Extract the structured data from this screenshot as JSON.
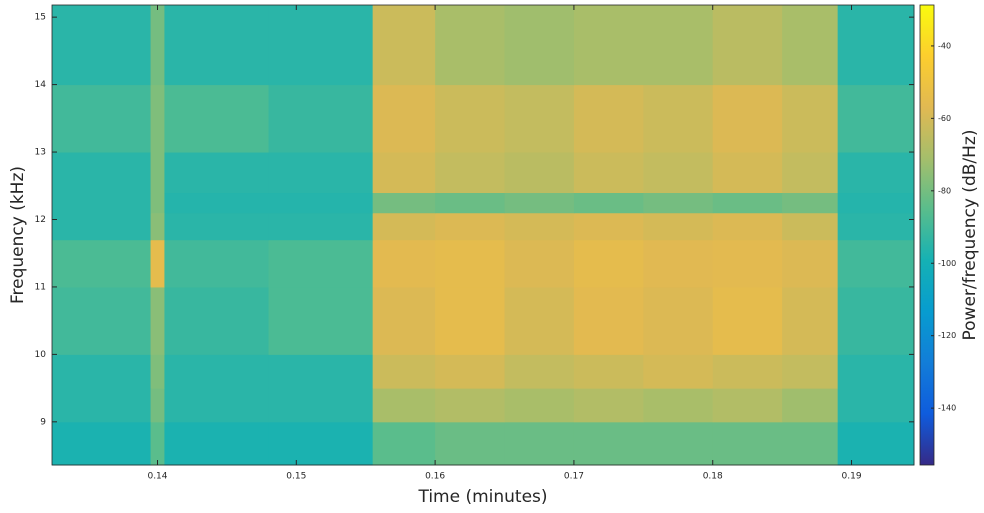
{
  "chart_data": {
    "type": "heatmap",
    "xlabel": "Time (minutes)",
    "ylabel": "Frequency (kHz)",
    "colorbar_label": "Power/frequency (dB/Hz)",
    "x_edges": [
      0.1324,
      0.1395,
      0.1405,
      0.148,
      0.1555,
      0.16,
      0.165,
      0.17,
      0.175,
      0.18,
      0.185,
      0.189,
      0.1945
    ],
    "y_edges": [
      8.36,
      9,
      9.5,
      10,
      11,
      11.7,
      12.1,
      12.4,
      13,
      14,
      15.18
    ],
    "values": [
      [
        -98,
        -85,
        -98,
        -98,
        -85,
        -82,
        -82,
        -82,
        -82,
        -82,
        -82,
        -98
      ],
      [
        -95,
        -80,
        -95,
        -95,
        -70,
        -68,
        -70,
        -68,
        -70,
        -68,
        -72,
        -95
      ],
      [
        -95,
        -78,
        -95,
        -95,
        -62,
        -60,
        -64,
        -62,
        -60,
        -62,
        -64,
        -95
      ],
      [
        -90,
        -76,
        -92,
        -88,
        -58,
        -55,
        -60,
        -56,
        -58,
        -55,
        -60,
        -92
      ],
      [
        -88,
        -55,
        -90,
        -88,
        -56,
        -55,
        -58,
        -55,
        -57,
        -56,
        -58,
        -90
      ],
      [
        -95,
        -76,
        -95,
        -95,
        -60,
        -58,
        -60,
        -58,
        -60,
        -58,
        -62,
        -95
      ],
      [
        -95,
        -78,
        -96,
        -96,
        -80,
        -82,
        -80,
        -82,
        -80,
        -82,
        -80,
        -96
      ],
      [
        -95,
        -78,
        -95,
        -95,
        -60,
        -64,
        -66,
        -62,
        -64,
        -60,
        -64,
        -95
      ],
      [
        -90,
        -78,
        -88,
        -92,
        -58,
        -62,
        -64,
        -60,
        -62,
        -58,
        -62,
        -90
      ],
      [
        -95,
        -80,
        -95,
        -95,
        -62,
        -70,
        -72,
        -70,
        -70,
        -66,
        -70,
        -95
      ]
    ],
    "xlim": [
      0.1324,
      0.1945
    ],
    "xticks": [
      0.14,
      0.15,
      0.16,
      0.17,
      0.18,
      0.19
    ],
    "ylim": [
      8.36,
      15.18
    ],
    "yticks": [
      9,
      10,
      11,
      12,
      13,
      14,
      15
    ],
    "clim": [
      -155.7,
      -28.7
    ],
    "cticks": [
      -40,
      -60,
      -80,
      -100,
      -120,
      -140
    ],
    "colormap": "parula"
  }
}
